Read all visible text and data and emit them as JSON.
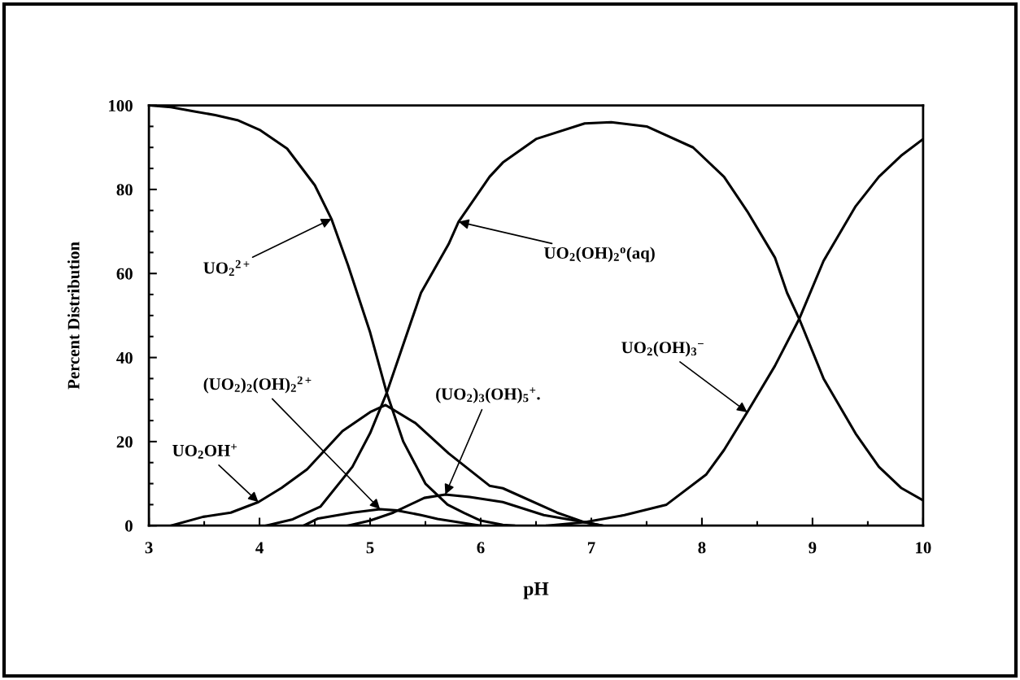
{
  "chart_data": {
    "type": "line",
    "xlabel": "pH",
    "ylabel": "Percent Distribution",
    "xlim": [
      3,
      10
    ],
    "ylim": [
      0,
      100
    ],
    "xticks": [
      3,
      4,
      5,
      6,
      7,
      8,
      9,
      10
    ],
    "yticks": [
      0,
      20,
      40,
      60,
      80,
      100
    ],
    "grid": false,
    "legend": false,
    "marker": "none",
    "line_style": "solid",
    "series": [
      {
        "color": "#000000",
        "x": [
          3,
          3.2,
          3.4,
          3.6,
          3.8,
          4,
          4.25,
          4.5,
          4.65,
          4.8,
          5.0,
          5.15,
          5.3,
          5.5,
          5.7,
          5.85,
          6.0,
          6.2,
          6.3
        ],
        "values": [
          100,
          99.6,
          98.6,
          97.7,
          96.5,
          94.2,
          89.7,
          81,
          73,
          62,
          46,
          31.6,
          20,
          10,
          5,
          3,
          1.2,
          0.2,
          0
        ]
      },
      {
        "color": "#000000",
        "x": [
          4.06,
          4.3,
          4.55,
          4.84,
          5.0,
          5.15,
          5.46,
          5.71,
          5.8,
          6.08,
          6.2,
          6.5,
          6.94,
          7.18,
          7.5,
          7.92,
          8.2,
          8.41,
          8.66,
          8.77,
          8.88,
          9.1,
          9.39,
          9.6,
          9.8,
          10
        ],
        "values": [
          0,
          1.5,
          4.5,
          14,
          22,
          31.6,
          55.4,
          67,
          72.3,
          83,
          86.4,
          92,
          95.7,
          96,
          95,
          90,
          83,
          74.8,
          63.8,
          55.4,
          49.2,
          35,
          21.9,
          14,
          9,
          6
        ]
      },
      {
        "color": "#000000",
        "x": [
          6.6,
          6.94,
          7.3,
          7.68,
          8.04,
          8.2,
          8.41,
          8.66,
          8.88,
          9.1,
          9.39,
          9.6,
          9.8,
          10
        ],
        "values": [
          0,
          0.8,
          2.5,
          5,
          12.2,
          18,
          27,
          38,
          49.2,
          63,
          76,
          83,
          88,
          92
        ]
      },
      {
        "color": "#000000",
        "x": [
          3.2,
          3.49,
          3.74,
          3.99,
          4.2,
          4.43,
          4.75,
          5.0,
          5.14,
          5.41,
          5.71,
          6.08,
          6.2,
          6.69,
          6.94,
          7.1
        ],
        "values": [
          0,
          2.1,
          3.1,
          5.6,
          9,
          13.4,
          22.5,
          27,
          28.7,
          24.4,
          17.2,
          9.5,
          8.9,
          3.1,
          0.8,
          0
        ]
      },
      {
        "color": "#000000",
        "x": [
          4.4,
          4.53,
          4.84,
          5.09,
          5.25,
          5.46,
          5.61,
          5.95,
          6.0
        ],
        "values": [
          0,
          1.7,
          3.1,
          3.9,
          3.6,
          2.5,
          1.6,
          0.2,
          0
        ]
      },
      {
        "color": "#000000",
        "x": [
          4.8,
          5.0,
          5.21,
          5.49,
          5.68,
          5.9,
          6.2,
          6.57,
          6.94,
          7.1
        ],
        "values": [
          0,
          1.2,
          3.1,
          6.6,
          7.4,
          6.8,
          5.6,
          2.5,
          0.8,
          0
        ]
      }
    ],
    "annotations": [
      {
        "text": "UO$_{2}$$^{2+}$",
        "x": 4.65,
        "y": 73
      },
      {
        "text": "UO$_{2}$(OH)$_{2}$$^{o}$(aq)",
        "x": 5.8,
        "y": 72.3
      },
      {
        "text": "UO$_{2}$(OH)$_{3}$$^{−}$",
        "x": 8.41,
        "y": 27
      },
      {
        "text": "UO$_{2}$OH$^{+}$",
        "x": 3.99,
        "y": 5.6
      },
      {
        "text": "(UO$_{2}$)$_{2}$(OH)$_{2}$$^{2+}$",
        "x": 5.09,
        "y": 3.9
      },
      {
        "text": "(UO$_{2}$)$_{3}$(OH)$_{5}$$^{+}$.",
        "x": 5.68,
        "y": 7.4
      }
    ]
  }
}
